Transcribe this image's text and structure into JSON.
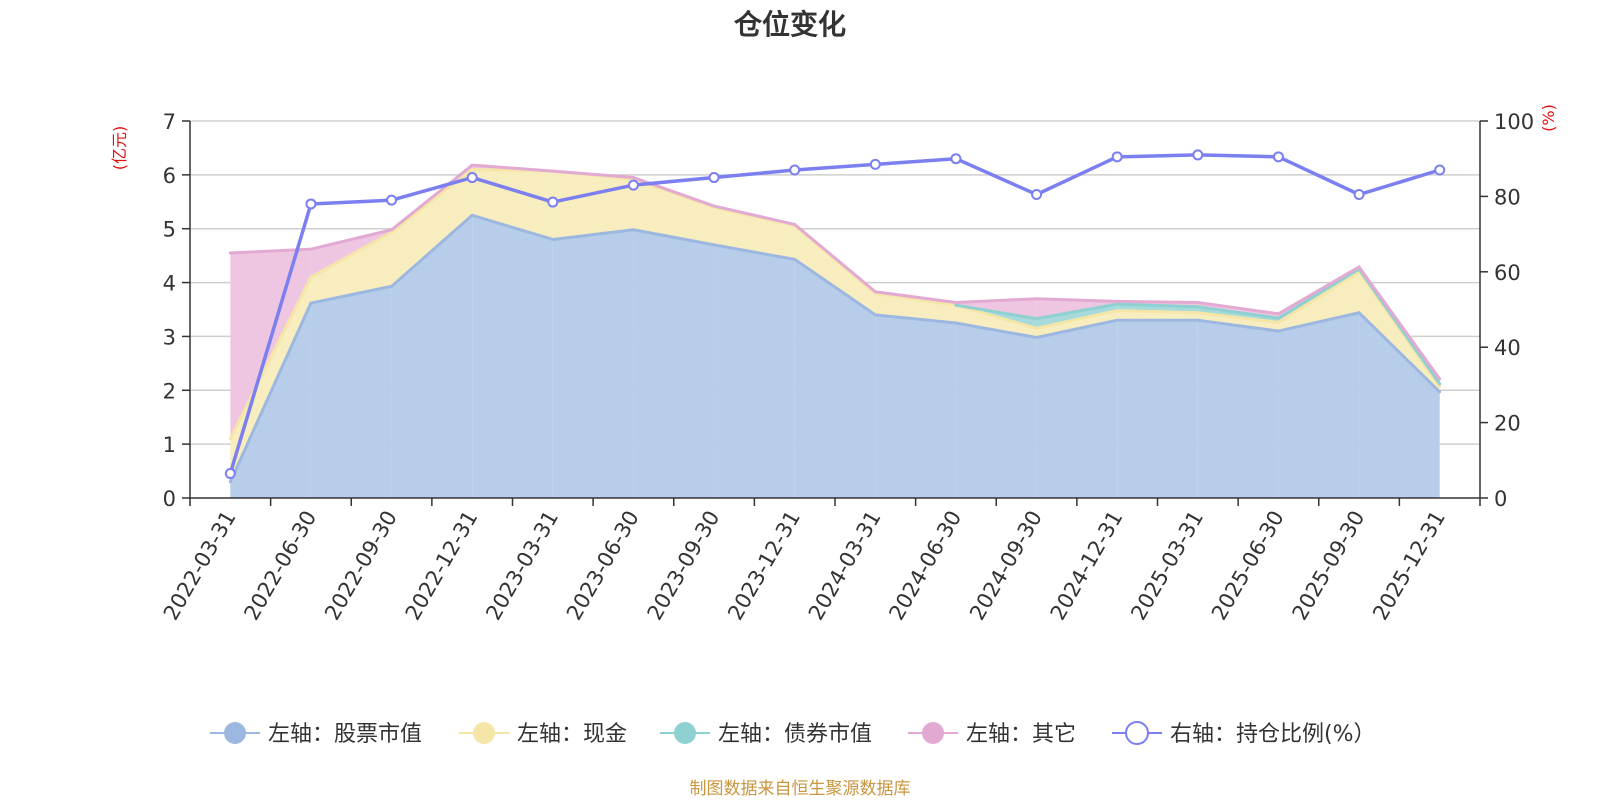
{
  "chart_data": {
    "type": "area",
    "title": "仓位变化",
    "left_axis_unit": "(亿元)",
    "right_axis_unit": "(%)",
    "source": "制图数据来自恒生聚源数据库",
    "categories": [
      "2022-03-31",
      "2022-06-30",
      "2022-09-30",
      "2022-12-31",
      "2023-03-31",
      "2023-06-30",
      "2023-09-30",
      "2023-12-31",
      "2024-03-31",
      "2024-06-30",
      "2024-09-30",
      "2024-12-31",
      "2025-03-31",
      "2025-06-30",
      "2025-09-30",
      "2025-12-31"
    ],
    "left_ylim": [
      0,
      7
    ],
    "left_yticks": [
      0,
      1,
      2,
      3,
      4,
      5,
      6,
      7
    ],
    "right_ylim": [
      0,
      100
    ],
    "right_yticks": [
      0,
      20,
      40,
      60,
      80,
      100
    ],
    "grid": true,
    "legend_position": "bottom",
    "series": [
      {
        "name": "左轴：股票市值",
        "axis": "left",
        "stack": true,
        "color": "#9db8e0",
        "fill": "#b7cdea",
        "values": [
          0.3,
          3.62,
          3.93,
          5.25,
          4.8,
          4.98,
          4.7,
          4.43,
          3.4,
          3.25,
          2.98,
          3.3,
          3.3,
          3.1,
          3.44,
          1.97
        ]
      },
      {
        "name": "左轴：现金",
        "axis": "left",
        "stack": true,
        "color": "#f5e6a8",
        "fill": "#f8edbf",
        "values": [
          0.8,
          0.48,
          1.0,
          0.85,
          1.27,
          0.94,
          0.7,
          0.63,
          0.4,
          0.33,
          0.17,
          0.18,
          0.14,
          0.16,
          0.76,
          0.1
        ]
      },
      {
        "name": "左轴：债券市值",
        "axis": "left",
        "stack": true,
        "color": "#8fd0d0",
        "fill": "#a7dada",
        "values": [
          0,
          0,
          0,
          0,
          0,
          0,
          0,
          0,
          0,
          0,
          0.18,
          0.12,
          0.11,
          0.08,
          0.05,
          0.05
        ]
      },
      {
        "name": "左轴：其它",
        "axis": "left",
        "stack": true,
        "color": "#e2aad2",
        "fill": "#efc6e2",
        "values": [
          3.45,
          0.52,
          0.05,
          0.08,
          0.0,
          0.03,
          0.02,
          0.02,
          0.03,
          0.05,
          0.37,
          0.05,
          0.08,
          0.08,
          0.04,
          0.09
        ]
      },
      {
        "name": "右轴：持仓比例(%）",
        "axis": "right",
        "stack": false,
        "color": "#7b7ff0",
        "values": [
          6.5,
          78,
          79,
          85,
          78.5,
          83,
          85,
          87,
          88.5,
          90,
          80.5,
          90.5,
          91,
          90.5,
          80.5,
          87
        ]
      }
    ]
  }
}
